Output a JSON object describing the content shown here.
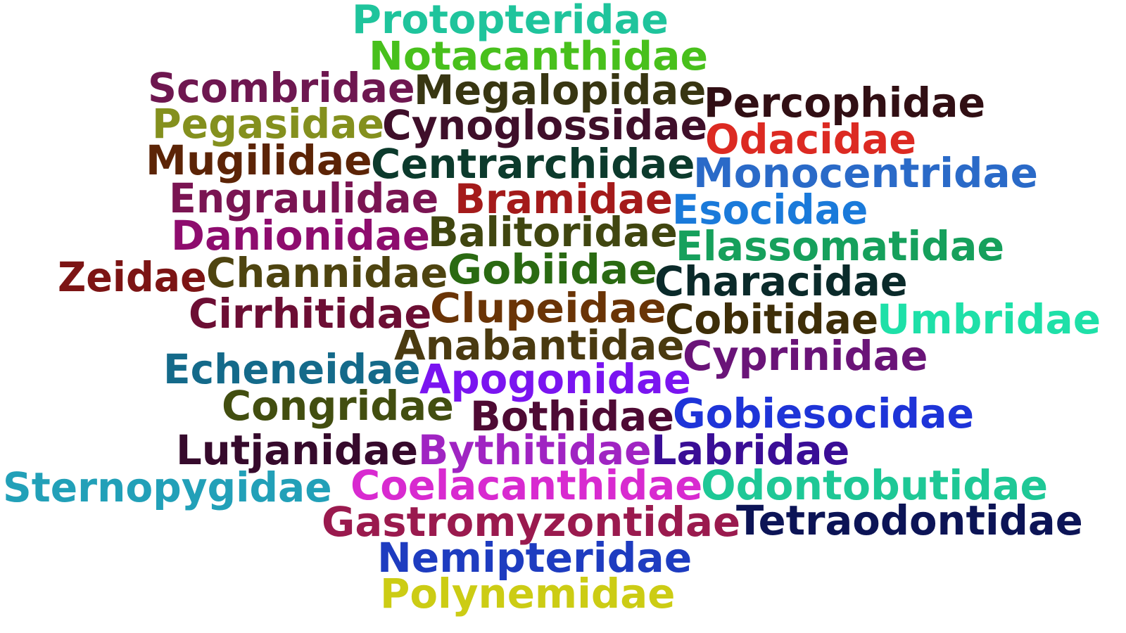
{
  "words": [
    {
      "text": "Protopteridae",
      "color": "#1fc49c"
    },
    {
      "text": "Notacanthidae",
      "color": "#48c01c"
    },
    {
      "text": "Scombridae",
      "color": "#6e1750"
    },
    {
      "text": "Megalopidae",
      "color": "#383612"
    },
    {
      "text": "Percophidae",
      "color": "#310f14"
    },
    {
      "text": "Pegasidae",
      "color": "#84901e"
    },
    {
      "text": "Cynoglossidae",
      "color": "#3f0f2a"
    },
    {
      "text": "Odacidae",
      "color": "#dc2a22"
    },
    {
      "text": "Mugilidae",
      "color": "#5c2406"
    },
    {
      "text": "Centrarchidae",
      "color": "#0c3a2c"
    },
    {
      "text": "Monocentridae",
      "color": "#2a6ac8"
    },
    {
      "text": "Engraulidae",
      "color": "#7a1452"
    },
    {
      "text": "Bramidae",
      "color": "#a41a1a"
    },
    {
      "text": "Esocidae",
      "color": "#1a7ada"
    },
    {
      "text": "Danionidae",
      "color": "#8e0c6e"
    },
    {
      "text": "Balitoridae",
      "color": "#404610"
    },
    {
      "text": "Elassomatidae",
      "color": "#16a05c"
    },
    {
      "text": "Zeidae",
      "color": "#7c1414"
    },
    {
      "text": "Channidae",
      "color": "#4e4410"
    },
    {
      "text": "Gobiidae",
      "color": "#2a6a12"
    },
    {
      "text": "Characidae",
      "color": "#0a2a2a"
    },
    {
      "text": "Cirrhitidae",
      "color": "#6c0e34"
    },
    {
      "text": "Clupeidae",
      "color": "#6a3406"
    },
    {
      "text": "Cobitidae",
      "color": "#3e2e08"
    },
    {
      "text": "Umbridae",
      "color": "#1ee0a8"
    },
    {
      "text": "Anabantidae",
      "color": "#4a3a10"
    },
    {
      "text": "Cyprinidae",
      "color": "#6a1478"
    },
    {
      "text": "Echeneidae",
      "color": "#146a8a"
    },
    {
      "text": "Apogonidae",
      "color": "#7a14f0"
    },
    {
      "text": "Congridae",
      "color": "#424e10"
    },
    {
      "text": "Bothidae",
      "color": "#4e0a34"
    },
    {
      "text": "Gobiesocidae",
      "color": "#1e34d8"
    },
    {
      "text": "Lutjanidae",
      "color": "#360a2c"
    },
    {
      "text": "Bythitidae",
      "color": "#a024c2"
    },
    {
      "text": "Labridae",
      "color": "#3a0e96"
    },
    {
      "text": "Sternopygidae",
      "color": "#22a0b8"
    },
    {
      "text": "Coelacanthidae",
      "color": "#d82ad0"
    },
    {
      "text": "Odontobutidae",
      "color": "#1ec896"
    },
    {
      "text": "Gastromyzontidae",
      "color": "#9a1a4e"
    },
    {
      "text": "Tetraodontidae",
      "color": "#0c1456"
    },
    {
      "text": "Nemipteridae",
      "color": "#1e3cc0"
    },
    {
      "text": "Polynemidae",
      "color": "#cccc14"
    }
  ]
}
